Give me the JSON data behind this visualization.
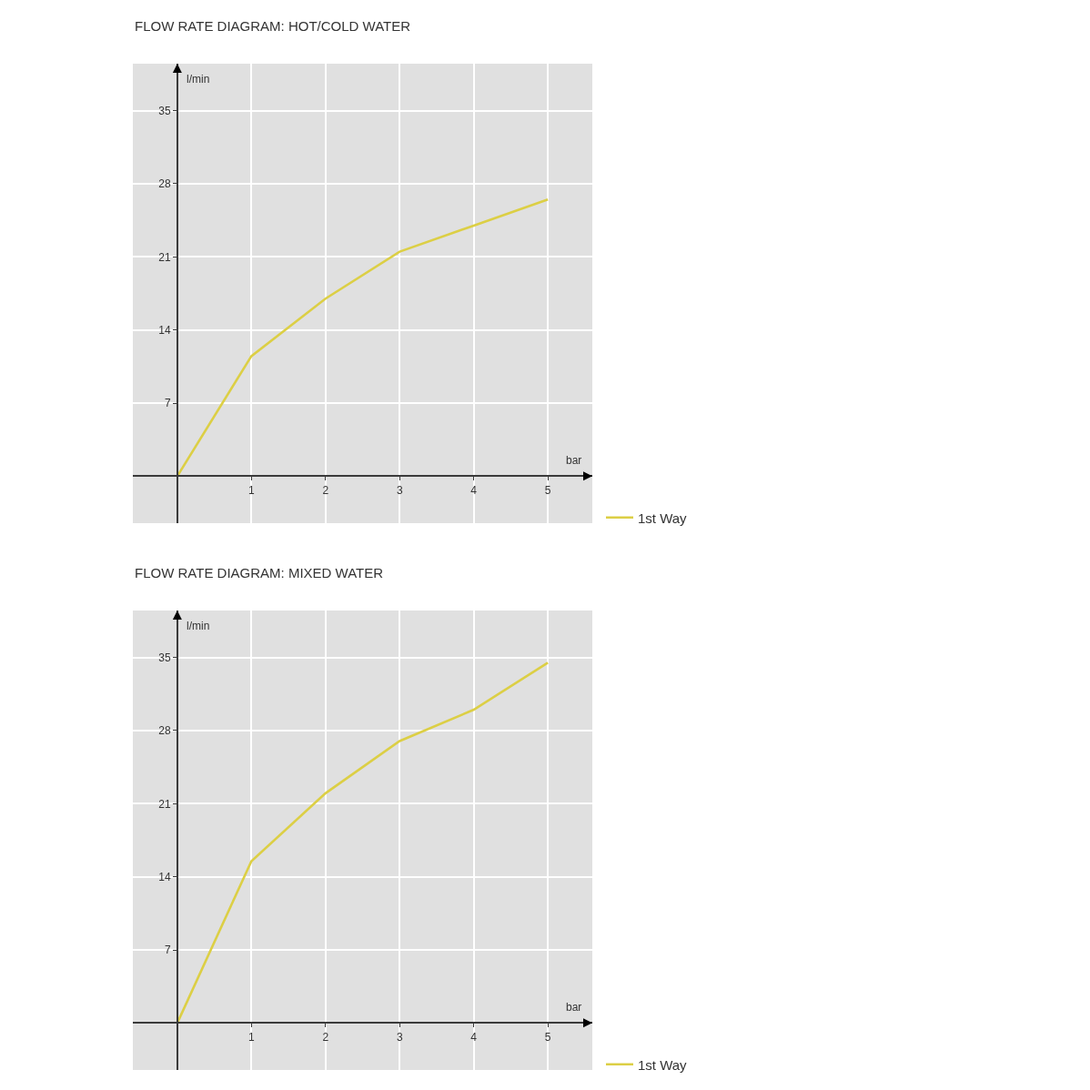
{
  "chart_data": [
    {
      "type": "line",
      "title": "FLOW RATE DIAGRAM: HOT/COLD WATER",
      "xlabel": "bar",
      "ylabel": "l/min",
      "x": [
        0,
        1,
        2,
        3,
        4,
        5
      ],
      "series": [
        {
          "name": "1st Way",
          "color": "#dccf45",
          "values": [
            0,
            11.5,
            17,
            21.5,
            24,
            26.5
          ]
        }
      ],
      "xlim": [
        -0.6,
        5.6
      ],
      "ylim": [
        -4.5,
        39.5
      ],
      "xticks": [
        1,
        2,
        3,
        4,
        5
      ],
      "yticks": [
        7,
        14,
        21,
        28,
        35
      ],
      "grid": true,
      "legend": "bottom right"
    },
    {
      "type": "line",
      "title": "FLOW RATE DIAGRAM: MIXED WATER",
      "xlabel": "bar",
      "ylabel": "l/min",
      "x": [
        0,
        1,
        2,
        3,
        4,
        5
      ],
      "series": [
        {
          "name": "1st Way",
          "color": "#dccf45",
          "values": [
            0,
            15.5,
            22,
            27,
            30,
            34.5
          ]
        }
      ],
      "xlim": [
        -0.6,
        5.6
      ],
      "ylim": [
        -4.5,
        39.5
      ],
      "xticks": [
        1,
        2,
        3,
        4,
        5
      ],
      "yticks": [
        7,
        14,
        21,
        28,
        35
      ],
      "grid": true,
      "legend": "bottom right"
    }
  ]
}
